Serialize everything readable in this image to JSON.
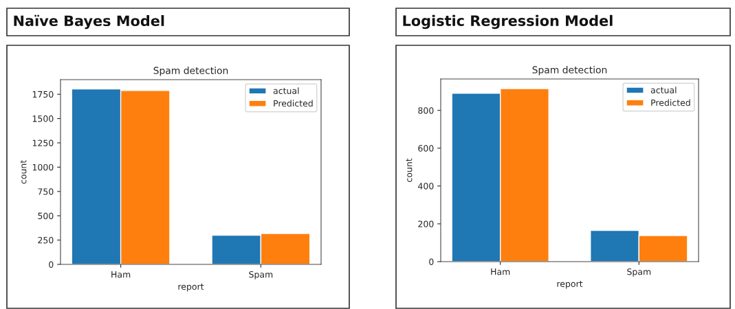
{
  "chart_data": [
    {
      "type": "bar",
      "title": "Naïve Bayes Model",
      "subtitle": "Spam detection",
      "xlabel": "report",
      "ylabel": "count",
      "categories": [
        "Ham",
        "Spam"
      ],
      "series": [
        {
          "name": "actual",
          "color": "#1f77b4",
          "values": [
            1804,
            299
          ]
        },
        {
          "name": "Predicted",
          "color": "#ff7f0e",
          "values": [
            1788,
            318
          ]
        }
      ],
      "ylim": [
        0,
        1900
      ],
      "yticks": [
        0,
        250,
        500,
        750,
        1000,
        1250,
        1500,
        1750
      ],
      "grid": false,
      "legend": "top right"
    },
    {
      "type": "bar",
      "title": "Logistic Regression Model",
      "subtitle": "Spam detection",
      "xlabel": "report",
      "ylabel": "count",
      "categories": [
        "Ham",
        "Spam"
      ],
      "series": [
        {
          "name": "actual",
          "color": "#1f77b4",
          "values": [
            890,
            165
          ]
        },
        {
          "name": "Predicted",
          "color": "#ff7f0e",
          "values": [
            915,
            138
          ]
        }
      ],
      "ylim": [
        0,
        966
      ],
      "yticks": [
        0,
        200,
        400,
        600,
        800
      ],
      "grid": false,
      "legend": "top right"
    }
  ]
}
